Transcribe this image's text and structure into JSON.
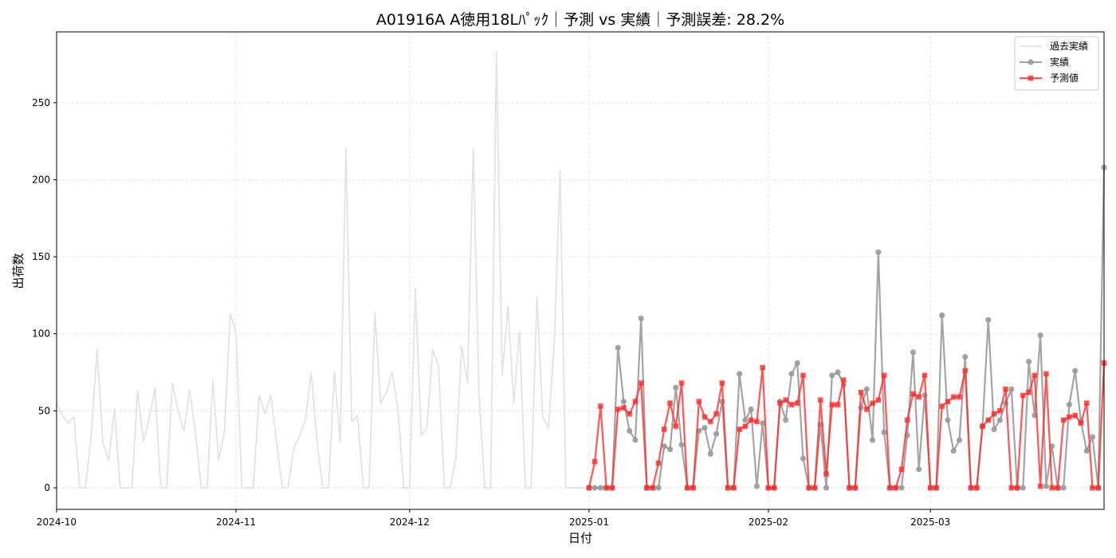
{
  "chart_data": {
    "type": "line",
    "title": "A01916A A徳用18Lﾊﾟｯｸ｜予測 vs 実績｜予測誤差: 28.2%",
    "xlabel": "日付",
    "ylabel": "出荷数",
    "xlim": [
      "2024-10-01",
      "2025-03-31"
    ],
    "ylim": [
      -14,
      296
    ],
    "x_ticks": [
      "2024-10",
      "2024-11",
      "2024-12",
      "2025-01",
      "2025-02",
      "2025-03"
    ],
    "y_ticks": [
      0,
      50,
      100,
      150,
      200,
      250
    ],
    "grid": true,
    "legend_position": "upper-right",
    "colors": {
      "history": "#e3e3e3",
      "actual": "#9a9a9a",
      "forecast": "#ff2a2a"
    },
    "series": [
      {
        "name": "過去実績",
        "style": "line",
        "x": [
          "2024-10-01",
          "2024-10-02",
          "2024-10-03",
          "2024-10-04",
          "2024-10-05",
          "2024-10-06",
          "2024-10-07",
          "2024-10-08",
          "2024-10-09",
          "2024-10-10",
          "2024-10-11",
          "2024-10-12",
          "2024-10-13",
          "2024-10-14",
          "2024-10-15",
          "2024-10-16",
          "2024-10-17",
          "2024-10-18",
          "2024-10-19",
          "2024-10-20",
          "2024-10-21",
          "2024-10-22",
          "2024-10-23",
          "2024-10-24",
          "2024-10-25",
          "2024-10-26",
          "2024-10-27",
          "2024-10-28",
          "2024-10-29",
          "2024-10-30",
          "2024-10-31",
          "2024-11-01",
          "2024-11-02",
          "2024-11-03",
          "2024-11-04",
          "2024-11-05",
          "2024-11-06",
          "2024-11-07",
          "2024-11-08",
          "2024-11-09",
          "2024-11-10",
          "2024-11-11",
          "2024-11-12",
          "2024-11-13",
          "2024-11-14",
          "2024-11-15",
          "2024-11-16",
          "2024-11-17",
          "2024-11-18",
          "2024-11-19",
          "2024-11-20",
          "2024-11-21",
          "2024-11-22",
          "2024-11-23",
          "2024-11-24",
          "2024-11-25",
          "2024-11-26",
          "2024-11-27",
          "2024-11-28",
          "2024-11-29",
          "2024-11-30",
          "2024-12-01",
          "2024-12-02",
          "2024-12-03",
          "2024-12-04",
          "2024-12-05",
          "2024-12-06",
          "2024-12-07",
          "2024-12-08",
          "2024-12-09",
          "2024-12-10",
          "2024-12-11",
          "2024-12-12",
          "2024-12-13",
          "2024-12-14",
          "2024-12-15",
          "2024-12-16",
          "2024-12-17",
          "2024-12-18",
          "2024-12-19",
          "2024-12-20",
          "2024-12-21",
          "2024-12-22",
          "2024-12-23",
          "2024-12-24",
          "2024-12-25",
          "2024-12-26",
          "2024-12-27",
          "2024-12-28",
          "2024-12-29",
          "2024-12-30",
          "2024-12-31",
          "2025-01-01"
        ],
        "values": [
          55,
          47,
          42,
          46,
          0,
          0,
          35,
          90,
          29,
          18,
          51,
          0,
          0,
          0,
          63,
          30,
          45,
          65,
          0,
          0,
          68,
          50,
          37,
          64,
          35,
          0,
          0,
          70,
          18,
          36,
          113,
          101,
          0,
          0,
          0,
          60,
          48,
          60,
          30,
          0,
          0,
          26,
          34,
          44,
          75,
          30,
          0,
          0,
          75,
          30,
          221,
          43,
          47,
          0,
          0,
          114,
          55,
          62,
          75,
          50,
          0,
          0,
          129,
          34,
          39,
          90,
          79,
          0,
          0,
          20,
          92,
          68,
          220,
          60,
          0,
          0,
          283,
          73,
          118,
          55,
          102,
          0,
          0,
          124,
          46,
          39,
          94,
          206,
          0,
          0,
          0,
          0,
          0
        ]
      },
      {
        "name": "実績",
        "style": "line-circle",
        "x": [
          "2025-01-01",
          "2025-01-02",
          "2025-01-03",
          "2025-01-04",
          "2025-01-05",
          "2025-01-06",
          "2025-01-07",
          "2025-01-08",
          "2025-01-09",
          "2025-01-10",
          "2025-01-11",
          "2025-01-12",
          "2025-01-13",
          "2025-01-14",
          "2025-01-15",
          "2025-01-16",
          "2025-01-17",
          "2025-01-18",
          "2025-01-19",
          "2025-01-20",
          "2025-01-21",
          "2025-01-22",
          "2025-01-23",
          "2025-01-24",
          "2025-01-25",
          "2025-01-26",
          "2025-01-27",
          "2025-01-28",
          "2025-01-29",
          "2025-01-30",
          "2025-01-31",
          "2025-02-01",
          "2025-02-02",
          "2025-02-03",
          "2025-02-04",
          "2025-02-05",
          "2025-02-06",
          "2025-02-07",
          "2025-02-08",
          "2025-02-09",
          "2025-02-10",
          "2025-02-11",
          "2025-02-12",
          "2025-02-13",
          "2025-02-14",
          "2025-02-15",
          "2025-02-16",
          "2025-02-17",
          "2025-02-18",
          "2025-02-19",
          "2025-02-20",
          "2025-02-21",
          "2025-02-22",
          "2025-02-23",
          "2025-02-24",
          "2025-02-25",
          "2025-02-26",
          "2025-02-27",
          "2025-02-28",
          "2025-03-01",
          "2025-03-02",
          "2025-03-03",
          "2025-03-04",
          "2025-03-05",
          "2025-03-06",
          "2025-03-07",
          "2025-03-08",
          "2025-03-09",
          "2025-03-10",
          "2025-03-11",
          "2025-03-12",
          "2025-03-13",
          "2025-03-14",
          "2025-03-15",
          "2025-03-16",
          "2025-03-17",
          "2025-03-18",
          "2025-03-19",
          "2025-03-20",
          "2025-03-21",
          "2025-03-22",
          "2025-03-23",
          "2025-03-24",
          "2025-03-25",
          "2025-03-26",
          "2025-03-27",
          "2025-03-28",
          "2025-03-29",
          "2025-03-30",
          "2025-03-31"
        ],
        "values": [
          0,
          0,
          0,
          0,
          0,
          91,
          56,
          37,
          31,
          110,
          0,
          0,
          0,
          27,
          25,
          65,
          28,
          0,
          0,
          37,
          39,
          22,
          35,
          56,
          0,
          0,
          74,
          44,
          51,
          1,
          42,
          0,
          0,
          56,
          44,
          74,
          81,
          19,
          0,
          0,
          41,
          0,
          73,
          75,
          67,
          0,
          0,
          52,
          64,
          31,
          153,
          36,
          0,
          0,
          0,
          34,
          88,
          12,
          60,
          0,
          0,
          112,
          44,
          24,
          31,
          85,
          0,
          0,
          40,
          109,
          38,
          44,
          55,
          64,
          0,
          0,
          82,
          47,
          99,
          1,
          27,
          0,
          0,
          54,
          76,
          43,
          24,
          33,
          0,
          208
        ]
      },
      {
        "name": "予測値",
        "style": "line-square",
        "x": [
          "2025-01-01",
          "2025-01-02",
          "2025-01-03",
          "2025-01-04",
          "2025-01-05",
          "2025-01-06",
          "2025-01-07",
          "2025-01-08",
          "2025-01-09",
          "2025-01-10",
          "2025-01-11",
          "2025-01-12",
          "2025-01-13",
          "2025-01-14",
          "2025-01-15",
          "2025-01-16",
          "2025-01-17",
          "2025-01-18",
          "2025-01-19",
          "2025-01-20",
          "2025-01-21",
          "2025-01-22",
          "2025-01-23",
          "2025-01-24",
          "2025-01-25",
          "2025-01-26",
          "2025-01-27",
          "2025-01-28",
          "2025-01-29",
          "2025-01-30",
          "2025-01-31",
          "2025-02-01",
          "2025-02-02",
          "2025-02-03",
          "2025-02-04",
          "2025-02-05",
          "2025-02-06",
          "2025-02-07",
          "2025-02-08",
          "2025-02-09",
          "2025-02-10",
          "2025-02-11",
          "2025-02-12",
          "2025-02-13",
          "2025-02-14",
          "2025-02-15",
          "2025-02-16",
          "2025-02-17",
          "2025-02-18",
          "2025-02-19",
          "2025-02-20",
          "2025-02-21",
          "2025-02-22",
          "2025-02-23",
          "2025-02-24",
          "2025-02-25",
          "2025-02-26",
          "2025-02-27",
          "2025-02-28",
          "2025-03-01",
          "2025-03-02",
          "2025-03-03",
          "2025-03-04",
          "2025-03-05",
          "2025-03-06",
          "2025-03-07",
          "2025-03-08",
          "2025-03-09",
          "2025-03-10",
          "2025-03-11",
          "2025-03-12",
          "2025-03-13",
          "2025-03-14",
          "2025-03-15",
          "2025-03-16",
          "2025-03-17",
          "2025-03-18",
          "2025-03-19",
          "2025-03-20",
          "2025-03-21",
          "2025-03-22",
          "2025-03-23",
          "2025-03-24",
          "2025-03-25",
          "2025-03-26",
          "2025-03-27",
          "2025-03-28",
          "2025-03-29",
          "2025-03-30",
          "2025-03-31"
        ],
        "values": [
          0,
          17,
          53,
          0,
          0,
          51,
          52,
          48,
          56,
          68,
          0,
          0,
          16,
          38,
          55,
          40,
          68,
          0,
          0,
          56,
          46,
          43,
          48,
          68,
          0,
          0,
          38,
          40,
          44,
          43,
          78,
          0,
          0,
          55,
          57,
          54,
          55,
          73,
          0,
          0,
          57,
          9,
          54,
          54,
          70,
          0,
          0,
          62,
          51,
          55,
          57,
          73,
          0,
          0,
          12,
          44,
          61,
          59,
          73,
          0,
          0,
          53,
          56,
          59,
          59,
          76,
          0,
          0,
          40,
          44,
          48,
          50,
          64,
          0,
          0,
          60,
          62,
          73,
          1,
          74,
          0,
          0,
          44,
          46,
          47,
          42,
          55,
          0,
          0,
          81
        ]
      }
    ]
  }
}
